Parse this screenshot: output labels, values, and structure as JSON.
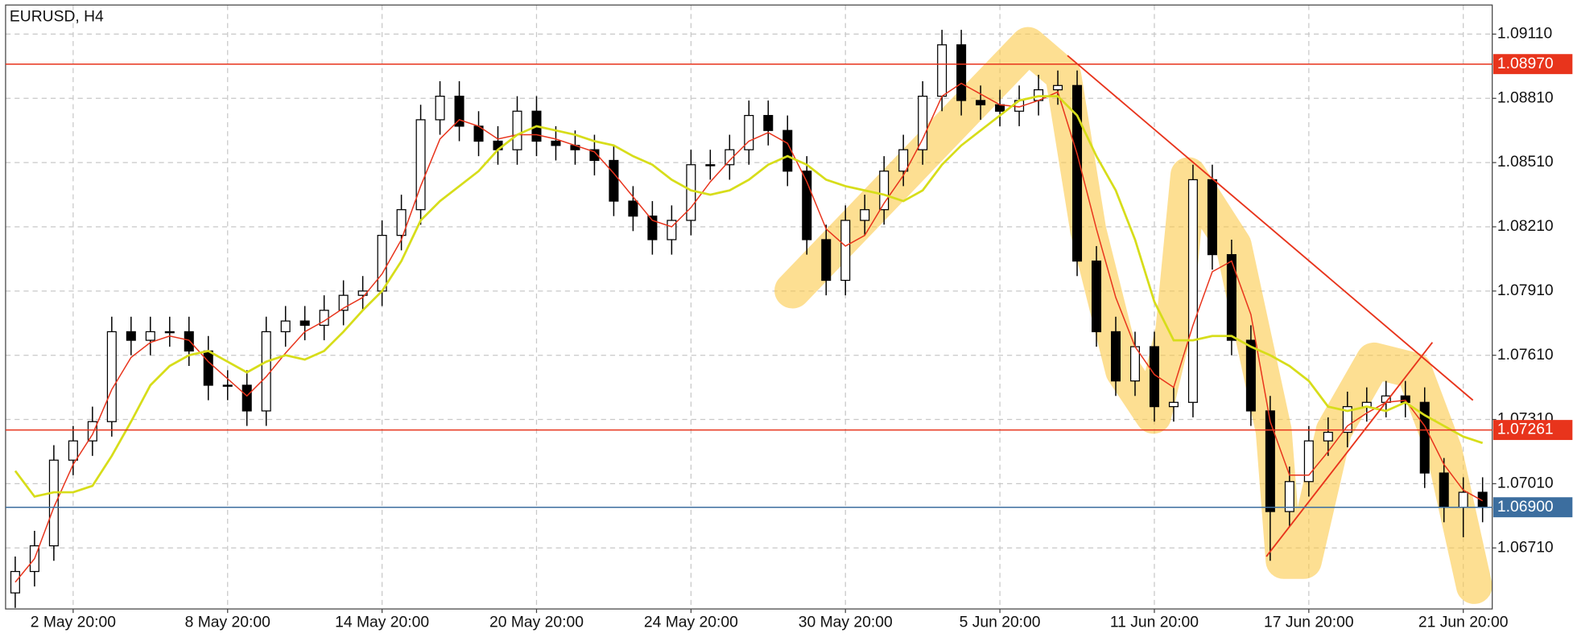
{
  "chart_data": {
    "type": "candlestick",
    "title": "EURUSD, H4",
    "categories": [
      null,
      null,
      null,
      "2 May 20:00",
      null,
      null,
      null,
      null,
      null,
      null,
      null,
      "8 May 20:00",
      null,
      null,
      null,
      null,
      null,
      null,
      null,
      "14 May 20:00",
      null,
      null,
      null,
      null,
      null,
      null,
      null,
      "20 May 20:00",
      null,
      null,
      null,
      null,
      null,
      null,
      null,
      "24 May 20:00",
      null,
      null,
      null,
      null,
      null,
      null,
      null,
      "30 May 20:00",
      null,
      null,
      null,
      null,
      null,
      null,
      null,
      "5 Jun 20:00",
      null,
      null,
      null,
      null,
      null,
      null,
      null,
      "11 Jun 20:00",
      null,
      null,
      null,
      null,
      null,
      null,
      null,
      "17 Jun 20:00",
      null,
      null,
      null,
      null,
      null,
      null,
      null,
      "21 Jun 20:00",
      null
    ],
    "open": [
      1.065,
      1.066,
      1.0672,
      1.0712,
      1.0721,
      1.073,
      1.0772,
      1.0768,
      1.0772,
      1.0772,
      1.0763,
      1.0747,
      1.0747,
      1.0735,
      1.0772,
      1.0777,
      1.0775,
      1.0782,
      1.0789,
      1.0791,
      1.0817,
      1.0829,
      1.0871,
      1.0882,
      1.0868,
      1.0861,
      1.0857,
      1.0875,
      1.0861,
      1.0859,
      1.0857,
      1.0852,
      1.0833,
      1.0826,
      1.0815,
      1.0824,
      1.085,
      1.085,
      1.0857,
      1.0873,
      1.0866,
      1.0847,
      1.0815,
      1.0796,
      1.0824,
      1.0829,
      1.0847,
      1.0857,
      1.0882,
      1.0906,
      1.088,
      1.0878,
      1.0875,
      1.088,
      1.0885,
      1.0887,
      1.0805,
      1.0772,
      1.0749,
      1.0765,
      1.0737,
      1.0739,
      1.0843,
      1.0808,
      1.0768,
      1.0735,
      1.0688,
      1.0702,
      1.0721,
      1.0725,
      1.0737,
      1.0739,
      1.0742,
      1.0739,
      1.0706,
      1.069,
      1.0697
    ],
    "high": [
      1.0667,
      1.0679,
      1.0719,
      1.0728,
      1.0737,
      1.0779,
      1.0779,
      1.0779,
      1.0779,
      1.0779,
      1.077,
      1.0754,
      1.0754,
      1.0779,
      1.0784,
      1.0784,
      1.0789,
      1.0796,
      1.0798,
      1.0824,
      1.0836,
      1.0878,
      1.0889,
      1.0889,
      1.0875,
      1.0868,
      1.0882,
      1.0882,
      1.0868,
      1.0866,
      1.0864,
      1.0859,
      1.084,
      1.0833,
      1.0831,
      1.0857,
      1.0857,
      1.0864,
      1.088,
      1.088,
      1.0873,
      1.0854,
      1.0822,
      1.0831,
      1.0836,
      1.0854,
      1.0864,
      1.0889,
      1.0913,
      1.0913,
      1.0887,
      1.0885,
      1.0887,
      1.0892,
      1.0894,
      1.0894,
      1.0812,
      1.0779,
      1.0772,
      1.0772,
      1.0746,
      1.085,
      1.085,
      1.0815,
      1.0775,
      1.0742,
      1.0709,
      1.0728,
      1.0732,
      1.0744,
      1.0746,
      1.0749,
      1.0749,
      1.0746,
      1.0713,
      1.0704,
      1.0704
    ],
    "low": [
      1.0643,
      1.0653,
      1.0665,
      1.0705,
      1.0714,
      1.0723,
      1.0761,
      1.0761,
      1.0765,
      1.0756,
      1.074,
      1.074,
      1.0728,
      1.0728,
      1.0765,
      1.0768,
      1.0768,
      1.0775,
      1.0782,
      1.0784,
      1.081,
      1.0822,
      1.0864,
      1.0861,
      1.0854,
      1.085,
      1.085,
      1.0854,
      1.0852,
      1.085,
      1.0845,
      1.0826,
      1.0819,
      1.0808,
      1.0808,
      1.0817,
      1.0843,
      1.0843,
      1.085,
      1.0859,
      1.084,
      1.0808,
      1.0789,
      1.0789,
      1.0817,
      1.0822,
      1.084,
      1.085,
      1.0875,
      1.0873,
      1.0871,
      1.0868,
      1.0868,
      1.0873,
      1.0878,
      1.0798,
      1.0765,
      1.0742,
      1.0742,
      1.073,
      1.073,
      1.0732,
      1.0801,
      1.0761,
      1.0728,
      1.0665,
      1.0681,
      1.0695,
      1.0714,
      1.0718,
      1.073,
      1.0732,
      1.0732,
      1.0699,
      1.0683,
      1.0676,
      1.0683
    ],
    "close": [
      1.066,
      1.0672,
      1.0712,
      1.0721,
      1.073,
      1.0772,
      1.0768,
      1.0772,
      1.0772,
      1.0763,
      1.0747,
      1.0747,
      1.0735,
      1.0772,
      1.0777,
      1.0775,
      1.0782,
      1.0789,
      1.0791,
      1.0817,
      1.0829,
      1.0871,
      1.0882,
      1.0868,
      1.0861,
      1.0857,
      1.0875,
      1.0861,
      1.0859,
      1.0857,
      1.0852,
      1.0833,
      1.0826,
      1.0815,
      1.0824,
      1.085,
      1.085,
      1.0857,
      1.0873,
      1.0866,
      1.0847,
      1.0815,
      1.0796,
      1.0824,
      1.0829,
      1.0847,
      1.0857,
      1.0882,
      1.0906,
      1.088,
      1.0878,
      1.0875,
      1.088,
      1.0885,
      1.0887,
      1.0805,
      1.0772,
      1.0749,
      1.0765,
      1.0737,
      1.0739,
      1.0843,
      1.0808,
      1.0768,
      1.0735,
      1.0688,
      1.0702,
      1.0721,
      1.0725,
      1.0737,
      1.0739,
      1.0742,
      1.0739,
      1.0706,
      1.069,
      1.0697,
      1.069
    ],
    "lines": [
      {
        "color": "#e8341c",
        "values": [
          1.0655,
          1.0666,
          1.069,
          1.071,
          1.0724,
          1.0745,
          1.076,
          1.0767,
          1.077,
          1.0768,
          1.0758,
          1.075,
          1.0742,
          1.0751,
          1.0762,
          1.0772,
          1.0777,
          1.0783,
          1.0788,
          1.0799,
          1.0815,
          1.084,
          1.0862,
          1.0871,
          1.0868,
          1.0862,
          1.0864,
          1.0864,
          1.0862,
          1.0859,
          1.0856,
          1.0846,
          1.0835,
          1.0824,
          1.0821,
          1.083,
          1.0842,
          1.0852,
          1.0861,
          1.0865,
          1.086,
          1.0842,
          1.082,
          1.0812,
          1.0817,
          1.0832,
          1.0845,
          1.0862,
          1.0882,
          1.0888,
          1.0883,
          1.0878,
          1.0877,
          1.088,
          1.0884,
          1.0855,
          1.082,
          1.0788,
          1.0765,
          1.0752,
          1.0746,
          1.0775,
          1.08,
          1.0805,
          1.078,
          1.073,
          1.0705,
          1.0705,
          1.0716,
          1.0728,
          1.0734,
          1.0739,
          1.074,
          1.0728,
          1.071,
          1.0698,
          1.0693
        ]
      },
      {
        "color": "#d7dd1a",
        "values": [
          1.0707,
          1.0695,
          1.0697,
          1.0697,
          1.07,
          1.0714,
          1.073,
          1.0747,
          1.0756,
          1.0761,
          1.0763,
          1.0758,
          1.0753,
          1.0758,
          1.0761,
          1.0759,
          1.0763,
          1.0772,
          1.0782,
          1.0791,
          1.0805,
          1.0824,
          1.0833,
          1.084,
          1.0847,
          1.0857,
          1.0864,
          1.0868,
          1.0866,
          1.0864,
          1.0861,
          1.0859,
          1.0854,
          1.085,
          1.0843,
          1.0838,
          1.0836,
          1.0838,
          1.0843,
          1.085,
          1.0854,
          1.085,
          1.0843,
          1.084,
          1.0838,
          1.0836,
          1.0833,
          1.0838,
          1.085,
          1.0859,
          1.0866,
          1.0873,
          1.088,
          1.0882,
          1.0882,
          1.0873,
          1.0854,
          1.0838,
          1.0815,
          1.0786,
          1.0768,
          1.0768,
          1.077,
          1.077,
          1.0765,
          1.0761,
          1.0756,
          1.0749,
          1.0737,
          1.0735,
          1.0737,
          1.0735,
          1.0739,
          1.0733,
          1.0728,
          1.0723,
          1.072
        ]
      }
    ],
    "levels": [
      {
        "value": 1.0897,
        "label": "1.08970",
        "color": "#e8341c"
      },
      {
        "value": 1.07261,
        "label": "1.07261",
        "color": "#e8341c"
      },
      {
        "value": 1.069,
        "label": "1.06900",
        "color": "#3c6e9f"
      }
    ],
    "trendlines": [
      {
        "x": [
          54.5,
          75.5
        ],
        "y": [
          1.0901,
          1.074
        ],
        "color": "#e8341c"
      },
      {
        "x": [
          64.8,
          73.4
        ],
        "y": [
          1.0667,
          1.0767
        ],
        "color": "#e8341c"
      }
    ],
    "ylim": [
      1.06425,
      1.09246
    ],
    "yticks": [
      {
        "value": 1.0671,
        "label": "1.06710"
      },
      {
        "value": 1.0701,
        "label": "1.07010"
      },
      {
        "value": 1.0731,
        "label": "1.07310"
      },
      {
        "value": 1.0761,
        "label": "1.07610"
      },
      {
        "value": 1.0791,
        "label": "1.07910"
      },
      {
        "value": 1.0821,
        "label": "1.08210"
      },
      {
        "value": 1.0851,
        "label": "1.08510"
      },
      {
        "value": 1.0881,
        "label": "1.08810"
      },
      {
        "value": 1.0911,
        "label": "1.09110"
      }
    ],
    "grid": true,
    "bull_color": "#ffffff",
    "bear_color": "#000000"
  }
}
